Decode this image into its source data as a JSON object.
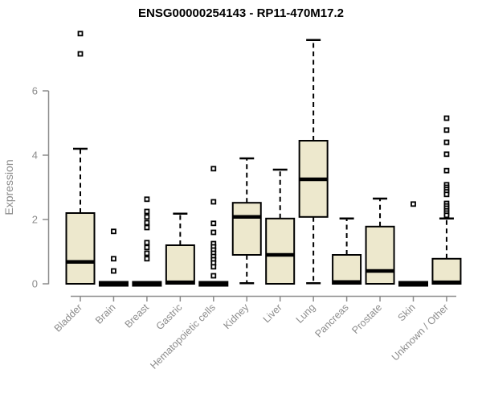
{
  "chart_data": {
    "type": "boxplot",
    "title": "ENSG00000254143 - RP11-470M17.2",
    "ylabel": "Expression",
    "xlabel": "",
    "ylim": [
      0,
      7.8
    ],
    "yticks": [
      0,
      2,
      4,
      6
    ],
    "grid": false,
    "legend": "none",
    "box_fill_color": "#EDE8CD",
    "box_border_color": "#000000",
    "axis_color": "#8c8c8c",
    "title_color": "#000000",
    "categories": [
      "Bladder",
      "Brain",
      "Breast",
      "Gastric",
      "Hematopoietic cells",
      "Kidney",
      "Liver",
      "Lung",
      "Pancreas",
      "Prostate",
      "Skin",
      "Unknown / Other"
    ],
    "series": [
      {
        "name": "Bladder",
        "q1": 0,
        "median": 0.68,
        "q3": 2.2,
        "whisker_low": null,
        "whisker_high": 4.2,
        "outliers": [
          7.15,
          7.78
        ]
      },
      {
        "name": "Brain",
        "q1": 0,
        "median": 0,
        "q3": 0,
        "whisker_low": null,
        "whisker_high": null,
        "outliers": [
          1.63,
          0.78,
          0.4
        ]
      },
      {
        "name": "Breast",
        "q1": 0,
        "median": 0,
        "q3": 0,
        "whisker_low": null,
        "whisker_high": null,
        "outliers": [
          2.63,
          2.25,
          2.08,
          1.9,
          1.75,
          1.28,
          1.13,
          0.95,
          0.78
        ]
      },
      {
        "name": "Gastric",
        "q1": 0,
        "median": 0.04,
        "q3": 1.2,
        "whisker_low": null,
        "whisker_high": 2.18,
        "outliers": []
      },
      {
        "name": "Hematopoietic cells",
        "q1": 0,
        "median": 0,
        "q3": 0,
        "whisker_low": null,
        "whisker_high": null,
        "outliers": [
          3.58,
          2.55,
          1.88,
          1.6,
          1.25,
          1.15,
          1.05,
          0.95,
          0.85,
          0.75,
          0.65,
          0.53,
          0.25
        ]
      },
      {
        "name": "Kidney",
        "q1": 0.9,
        "median": 2.08,
        "q3": 2.52,
        "whisker_low": 0.02,
        "whisker_high": 3.9,
        "outliers": []
      },
      {
        "name": "Liver",
        "q1": 0,
        "median": 0.9,
        "q3": 2.03,
        "whisker_low": null,
        "whisker_high": 3.55,
        "outliers": []
      },
      {
        "name": "Lung",
        "q1": 2.08,
        "median": 3.25,
        "q3": 4.45,
        "whisker_low": 0.02,
        "whisker_high": 7.58,
        "outliers": []
      },
      {
        "name": "Pancreas",
        "q1": 0,
        "median": 0.05,
        "q3": 0.9,
        "whisker_low": null,
        "whisker_high": 2.03,
        "outliers": []
      },
      {
        "name": "Prostate",
        "q1": 0,
        "median": 0.4,
        "q3": 1.78,
        "whisker_low": null,
        "whisker_high": 2.65,
        "outliers": []
      },
      {
        "name": "Skin",
        "q1": 0,
        "median": 0,
        "q3": 0,
        "whisker_low": null,
        "whisker_high": null,
        "outliers": [
          2.48
        ]
      },
      {
        "name": "Unknown / Other",
        "q1": 0,
        "median": 0.04,
        "q3": 0.78,
        "whisker_low": null,
        "whisker_high": 2.03,
        "outliers": [
          5.15,
          4.78,
          4.4,
          4.03,
          3.52,
          3.08,
          3.0,
          2.93,
          2.86,
          2.78,
          2.5,
          2.42,
          2.35,
          2.27,
          2.2,
          2.13
        ]
      }
    ]
  }
}
